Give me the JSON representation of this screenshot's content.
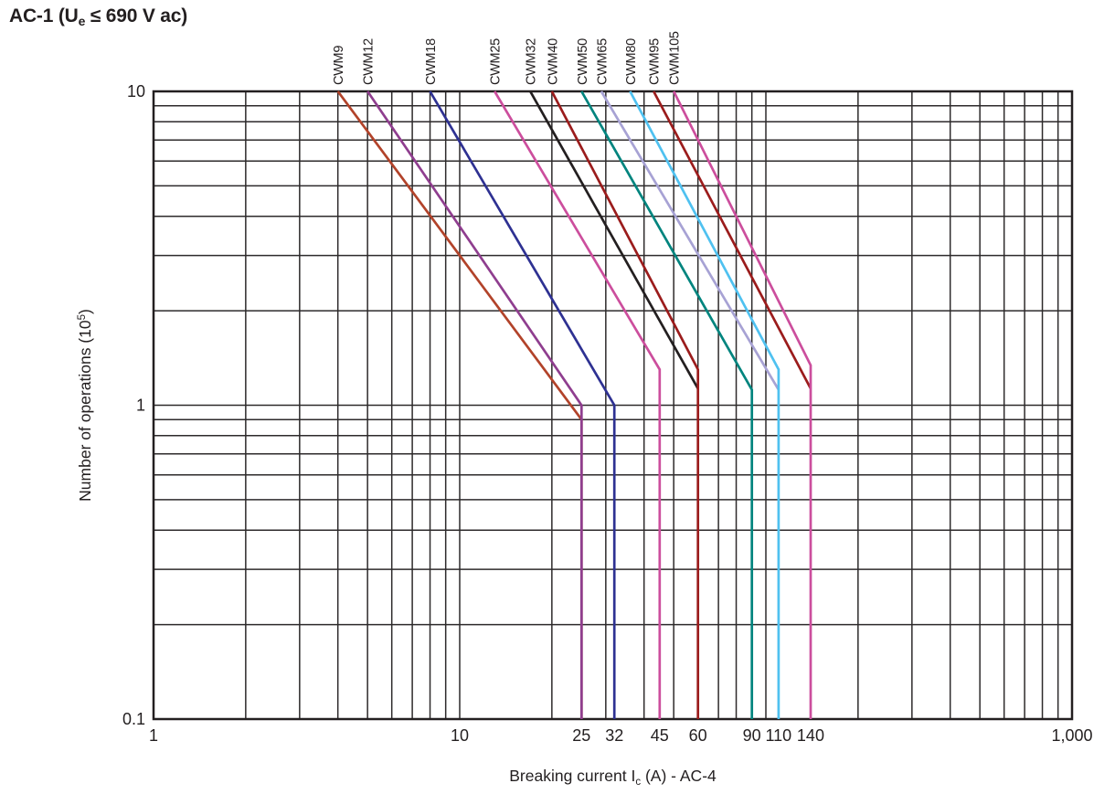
{
  "page": {
    "title": {
      "prefix": "AC-1 (U",
      "sub": "e",
      "suffix": " ≤ 690 V ac)"
    }
  },
  "chart_data": {
    "type": "line",
    "scale": "log-log",
    "grid": true,
    "grid_color": "#2d2a2b",
    "border_color": "#231f20",
    "x_axis": {
      "scale": "log",
      "min": 1,
      "max": 1000,
      "label": {
        "prefix": "Breaking current I",
        "sub": "c",
        "suffix": " (A) - AC-4"
      },
      "ticks": [
        {
          "value": 1,
          "label": "1"
        },
        {
          "value": 10,
          "label": "10"
        },
        {
          "value": 25,
          "label": "25"
        },
        {
          "value": 32,
          "label": "32"
        },
        {
          "value": 45,
          "label": "45"
        },
        {
          "value": 60,
          "label": "60"
        },
        {
          "value": 90,
          "label": "90"
        },
        {
          "value": 110,
          "label": "110"
        },
        {
          "value": 140,
          "label": "140"
        },
        {
          "value": 1000,
          "label": "1,000"
        }
      ]
    },
    "y_axis": {
      "scale": "log",
      "min": 0.1,
      "max": 10,
      "label": {
        "prefix": "Number of operations (10",
        "sup": "5",
        "suffix": ")"
      },
      "ticks": [
        {
          "value": 10,
          "label": "10"
        },
        {
          "value": 1,
          "label": "1"
        },
        {
          "value": 0.1,
          "label": "0.1"
        }
      ]
    },
    "series": [
      {
        "name": "CWM9",
        "color": "#b2432a",
        "breaking_current": 25,
        "points": [
          [
            4,
            10
          ],
          [
            25,
            0.9
          ],
          [
            25,
            0.1
          ]
        ]
      },
      {
        "name": "CWM12",
        "color": "#8f3e8f",
        "breaking_current": 25,
        "points": [
          [
            5,
            10
          ],
          [
            25,
            1.0
          ],
          [
            25,
            0.1
          ]
        ]
      },
      {
        "name": "CWM18",
        "color": "#2e3192",
        "breaking_current": 32,
        "points": [
          [
            8,
            10
          ],
          [
            32,
            1.0
          ],
          [
            32,
            0.1
          ]
        ]
      },
      {
        "name": "CWM25",
        "color": "#cc4e9d",
        "breaking_current": 45,
        "points": [
          [
            13,
            10
          ],
          [
            45,
            1.3
          ],
          [
            45,
            0.1
          ]
        ]
      },
      {
        "name": "CWM32",
        "color": "#231f20",
        "breaking_current": 60,
        "points": [
          [
            17,
            10
          ],
          [
            60,
            1.13
          ]
        ]
      },
      {
        "name": "CWM40",
        "color": "#9b1c1c",
        "breaking_current": 60,
        "points": [
          [
            20,
            10
          ],
          [
            60,
            1.3
          ],
          [
            60,
            0.1
          ]
        ]
      },
      {
        "name": "CWM50",
        "color": "#00847e",
        "breaking_current": 90,
        "points": [
          [
            25,
            10
          ],
          [
            90,
            1.12
          ],
          [
            90,
            0.1
          ]
        ]
      },
      {
        "name": "CWM65",
        "color": "#a7a2d4",
        "breaking_current": 110,
        "points": [
          [
            29,
            10
          ],
          [
            110,
            1.12
          ]
        ]
      },
      {
        "name": "CWM80",
        "color": "#4fc1f0",
        "breaking_current": 110,
        "points": [
          [
            36,
            10
          ],
          [
            110,
            1.3
          ],
          [
            110,
            0.1
          ]
        ]
      },
      {
        "name": "CWM95",
        "color": "#9b1c1c",
        "breaking_current": 140,
        "points": [
          [
            43,
            10
          ],
          [
            140,
            1.13
          ]
        ]
      },
      {
        "name": "CWM105",
        "color": "#cc4e9d",
        "breaking_current": 140,
        "points": [
          [
            50,
            10
          ],
          [
            140,
            1.34
          ],
          [
            140,
            0.1
          ]
        ]
      }
    ]
  }
}
